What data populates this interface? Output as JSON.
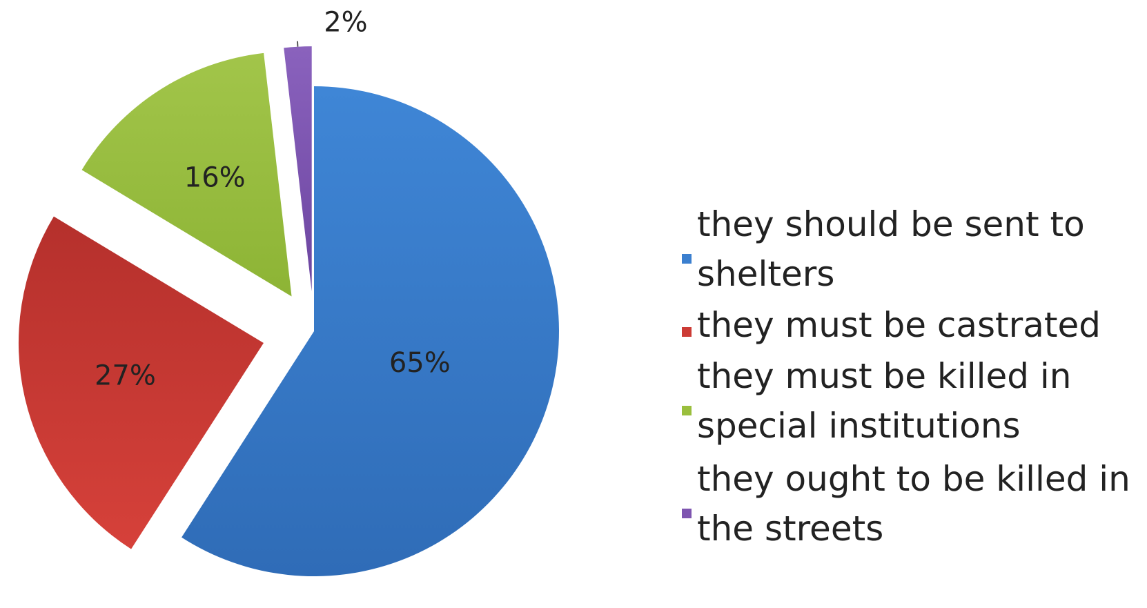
{
  "chart_data": {
    "type": "pie",
    "title": "",
    "labels": [
      "they should be sent to shelters",
      "they must be castrated",
      "they must be killed in special institutions",
      "they ought to be killed in the streets"
    ],
    "values": [
      65,
      27,
      16,
      2
    ],
    "value_labels": [
      "65%",
      "27%",
      "16%",
      "2%"
    ],
    "colors": [
      "#3b7fcf",
      "#cc3b35",
      "#9abf3d",
      "#7e55b0"
    ],
    "exploded": true,
    "legend": {
      "placement": "right",
      "items": [
        {
          "lines": [
            "they should be sent to",
            "shelters"
          ],
          "color": "#3b7fcf"
        },
        {
          "lines": [
            "they must be castrated"
          ],
          "color": "#cc3b35"
        },
        {
          "lines": [
            "they must be killed in",
            "special institutions"
          ],
          "color": "#9abf3d"
        },
        {
          "lines": [
            "they ought to be killed in",
            "the streets"
          ],
          "color": "#7e55b0"
        }
      ]
    }
  }
}
